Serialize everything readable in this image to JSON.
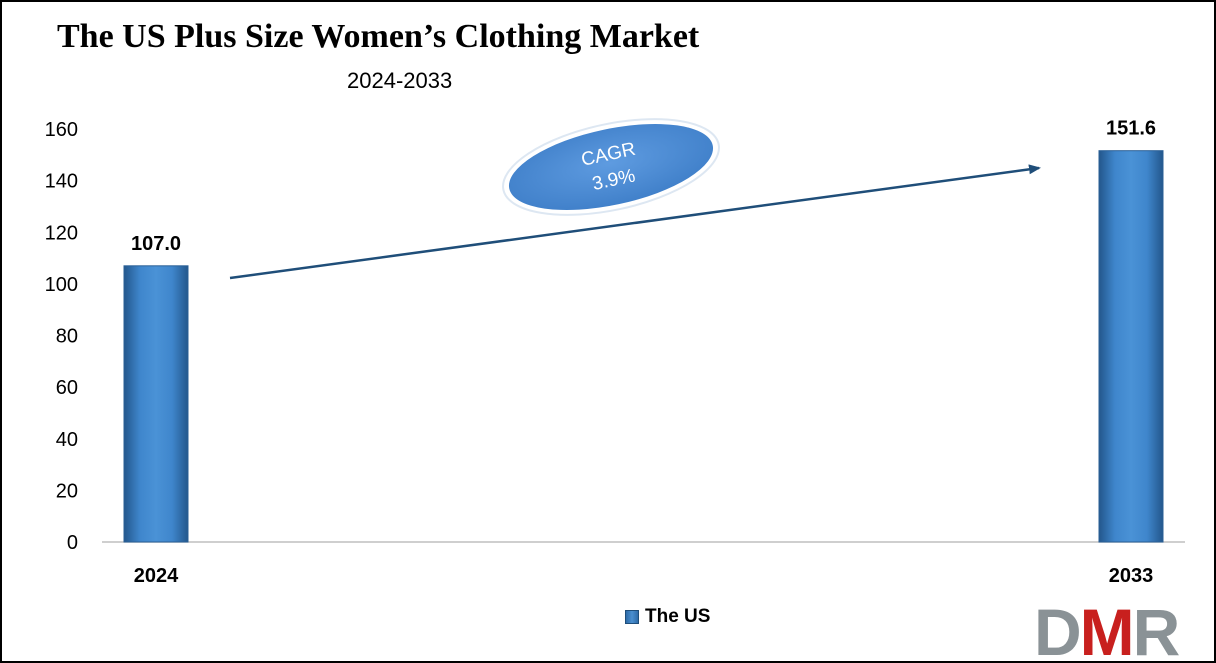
{
  "chart_data": {
    "type": "bar",
    "title": "The US Plus Size Women’s Clothing Market",
    "subtitle": "2024-2033",
    "categories": [
      "2024",
      "2033"
    ],
    "series": [
      {
        "name": "The US",
        "values": [
          107.0,
          151.6
        ],
        "labels": [
          "107.0",
          "151.6"
        ]
      }
    ],
    "ylim": [
      0,
      160
    ],
    "yticks": [
      "0",
      "20",
      "40",
      "60",
      "80",
      "100",
      "120",
      "140",
      "160"
    ],
    "grid": false,
    "legend_position": "bottom",
    "bar_color": "#3a7fc4",
    "annotation": {
      "line1": "CAGR",
      "line2": "3.9%"
    }
  },
  "brand": {
    "logo_text": "DMR",
    "logo_colors": [
      "#8a9296",
      "#c8201e"
    ]
  }
}
